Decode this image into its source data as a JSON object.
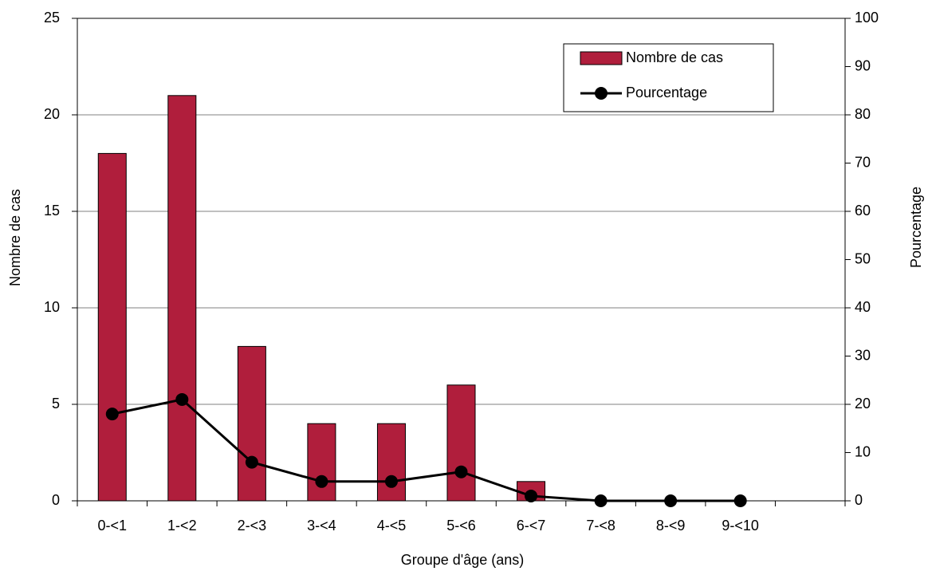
{
  "chart_data": {
    "type": "combo",
    "x_label": "Groupe d'âge (ans)",
    "y_label": "Nombre de cas",
    "y2_label": "Pourcentage",
    "categories": [
      "0-<1",
      "1-<2",
      "2-<3",
      "3-<4",
      "4-<5",
      "5-<6",
      "6-<7",
      "7-<8",
      "8-<9",
      "9-<10",
      null
    ],
    "series": [
      {
        "name": "Nombre de cas",
        "type": "bar",
        "color": "#b01e3c",
        "values": [
          18,
          21,
          8,
          4,
          4,
          6,
          1,
          0,
          0,
          0,
          null
        ]
      },
      {
        "name": "Pourcentage",
        "type": "line",
        "color": "#000000",
        "axis": "y2",
        "values": [
          18,
          21,
          8,
          4,
          4,
          6,
          1,
          0,
          0,
          0,
          null
        ]
      }
    ],
    "ylim": [
      0,
      25
    ],
    "yticks": [
      0,
      5,
      10,
      15,
      20,
      25
    ],
    "y2lim": [
      0,
      100
    ],
    "y2ticks": [
      0,
      10,
      20,
      30,
      40,
      50,
      60,
      70,
      80,
      90,
      100
    ],
    "grid": true,
    "legend": "upper right"
  }
}
